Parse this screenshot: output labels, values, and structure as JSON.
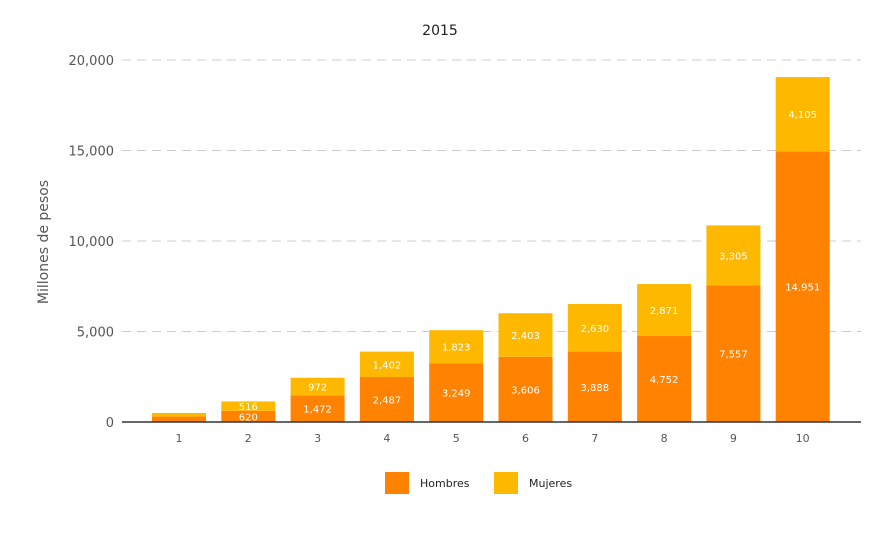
{
  "chart_data": {
    "type": "bar",
    "stacked": true,
    "title": "2015",
    "xlabel": "",
    "ylabel": "Millones de pesos",
    "categories": [
      "1",
      "2",
      "3",
      "4",
      "5",
      "6",
      "7",
      "8",
      "9",
      "10"
    ],
    "series": [
      {
        "name": "Hombres",
        "color": "#FF8200",
        "values": [
          300,
          620,
          1472,
          2487,
          3249,
          3606,
          3888,
          4752,
          7557,
          14951
        ],
        "labels": [
          "",
          "620",
          "1,472",
          "2,487",
          "3,249",
          "3,606",
          "3,888",
          "4,752",
          "7,557",
          "14,951"
        ]
      },
      {
        "name": "Mujeres",
        "color": "#FFB800",
        "values": [
          200,
          516,
          972,
          1402,
          1823,
          2403,
          2630,
          2871,
          3305,
          4105
        ],
        "labels": [
          "",
          "516",
          "972",
          "1,402",
          "1,823",
          "2,403",
          "2,630",
          "2,871",
          "3,305",
          "4,105"
        ]
      }
    ],
    "ylim": [
      0,
      20000
    ],
    "yticks": [
      0,
      5000,
      10000,
      15000,
      20000
    ],
    "ytick_labels": [
      "0",
      "5,000",
      "10,000",
      "15,000",
      "20,000"
    ],
    "grid": true,
    "legend_position": "bottom"
  }
}
